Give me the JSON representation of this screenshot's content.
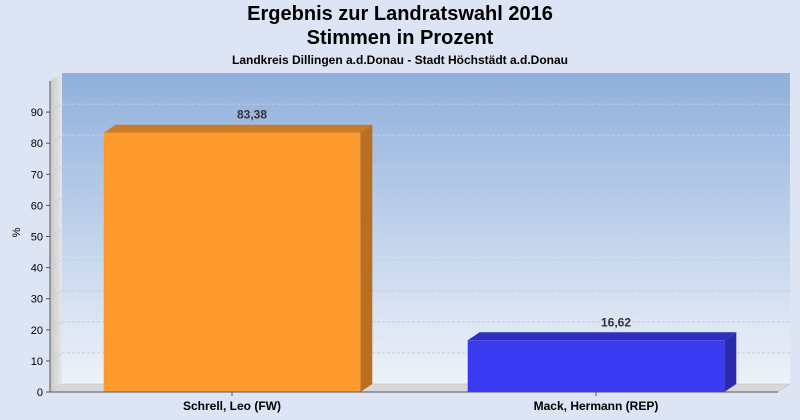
{
  "chart_data": {
    "type": "bar",
    "title": "Ergebnis zur Landratswahl 2016",
    "subtitle": "Stimmen in Prozent",
    "subsubtitle": "Landkreis Dillingen a.d.Donau - Stadt Höchstädt a.d.Donau",
    "ylabel": "%",
    "xlabel": "",
    "ylim": [
      0,
      100
    ],
    "yticks": [
      0,
      10,
      20,
      30,
      40,
      50,
      60,
      70,
      80,
      90
    ],
    "categories": [
      "Schrell, Leo (FW)",
      "Mack, Hermann (REP)"
    ],
    "values": [
      83.38,
      16.62
    ],
    "value_labels": [
      "83,38",
      "16,62"
    ],
    "bar_colors": [
      "#ff9a2e",
      "#3a3af0"
    ],
    "grid": true,
    "legend": "none"
  }
}
